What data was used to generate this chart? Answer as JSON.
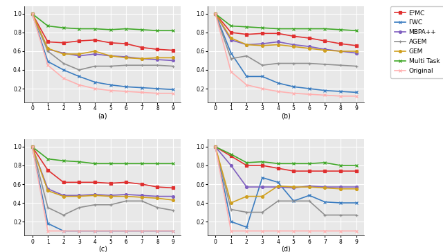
{
  "x": [
    0,
    1,
    2,
    3,
    4,
    5,
    6,
    7,
    8,
    9
  ],
  "series": {
    "E2MC": {
      "color": "#e03030",
      "marker": "s",
      "ms": 3.0,
      "lw": 1.2
    },
    "FWC": {
      "color": "#3a7cc0",
      "marker": "x",
      "ms": 3.5,
      "lw": 1.2
    },
    "MBPA++": {
      "color": "#8060c0",
      "marker": "o",
      "ms": 2.8,
      "lw": 1.2
    },
    "AGEM": {
      "color": "#909090",
      "marker": "+",
      "ms": 3.5,
      "lw": 1.2
    },
    "GEM": {
      "color": "#d0a020",
      "marker": "o",
      "ms": 2.8,
      "lw": 1.2
    },
    "Multi Task": {
      "color": "#40a828",
      "marker": "x",
      "ms": 3.5,
      "lw": 1.2
    },
    "Original": {
      "color": "#ffb0b0",
      "marker": "x",
      "ms": 3.0,
      "lw": 1.2
    }
  },
  "subplot_a": {
    "E2MC": [
      1.0,
      0.7,
      0.69,
      0.71,
      0.72,
      0.69,
      0.68,
      0.64,
      0.62,
      0.61
    ],
    "FWC": [
      1.0,
      0.49,
      0.4,
      0.33,
      0.27,
      0.24,
      0.22,
      0.21,
      0.2,
      0.19
    ],
    "MBPA++": [
      1.0,
      0.62,
      0.58,
      0.55,
      0.57,
      0.55,
      0.54,
      0.52,
      0.51,
      0.5
    ],
    "AGEM": [
      1.0,
      0.6,
      0.47,
      0.4,
      0.44,
      0.44,
      0.45,
      0.45,
      0.45,
      0.44
    ],
    "GEM": [
      1.0,
      0.63,
      0.57,
      0.57,
      0.6,
      0.55,
      0.53,
      0.52,
      0.53,
      0.53
    ],
    "Multi Task": [
      1.0,
      0.87,
      0.85,
      0.84,
      0.84,
      0.83,
      0.84,
      0.83,
      0.82,
      0.82
    ],
    "Original": [
      1.0,
      0.45,
      0.31,
      0.24,
      0.2,
      0.18,
      0.17,
      0.16,
      0.15,
      0.15
    ]
  },
  "subplot_b": {
    "E2MC": [
      1.0,
      0.8,
      0.78,
      0.79,
      0.79,
      0.76,
      0.74,
      0.71,
      0.68,
      0.66
    ],
    "FWC": [
      1.0,
      0.58,
      0.33,
      0.33,
      0.26,
      0.22,
      0.2,
      0.18,
      0.17,
      0.16
    ],
    "MBPA++": [
      1.0,
      0.72,
      0.67,
      0.68,
      0.7,
      0.67,
      0.65,
      0.62,
      0.6,
      0.58
    ],
    "AGEM": [
      1.0,
      0.52,
      0.55,
      0.45,
      0.47,
      0.47,
      0.47,
      0.46,
      0.45,
      0.44
    ],
    "GEM": [
      1.0,
      0.74,
      0.67,
      0.66,
      0.67,
      0.65,
      0.63,
      0.61,
      0.6,
      0.6
    ],
    "Multi Task": [
      1.0,
      0.87,
      0.86,
      0.85,
      0.84,
      0.84,
      0.84,
      0.84,
      0.83,
      0.82
    ],
    "Original": [
      1.0,
      0.38,
      0.24,
      0.2,
      0.17,
      0.15,
      0.14,
      0.13,
      0.12,
      0.12
    ]
  },
  "subplot_c": {
    "E2MC": [
      1.0,
      0.75,
      0.62,
      0.62,
      0.62,
      0.61,
      0.62,
      0.6,
      0.57,
      0.56
    ],
    "FWC": [
      1.0,
      0.18,
      0.1,
      0.1,
      0.1,
      0.1,
      0.1,
      0.1,
      0.1,
      0.1
    ],
    "MBPA++": [
      1.0,
      0.55,
      0.48,
      0.48,
      0.49,
      0.48,
      0.49,
      0.48,
      0.47,
      0.47
    ],
    "AGEM": [
      1.0,
      0.35,
      0.27,
      0.35,
      0.38,
      0.38,
      0.42,
      0.42,
      0.35,
      0.32
    ],
    "GEM": [
      1.0,
      0.53,
      0.47,
      0.47,
      0.48,
      0.47,
      0.47,
      0.46,
      0.45,
      0.43
    ],
    "Multi Task": [
      1.0,
      0.87,
      0.85,
      0.84,
      0.82,
      0.82,
      0.82,
      0.82,
      0.82,
      0.82
    ],
    "Original": [
      1.0,
      0.1,
      0.1,
      0.1,
      0.1,
      0.1,
      0.1,
      0.1,
      0.1,
      0.1
    ]
  },
  "subplot_d": {
    "E2MC": [
      1.0,
      0.9,
      0.8,
      0.8,
      0.77,
      0.74,
      0.74,
      0.74,
      0.74,
      0.74
    ],
    "FWC": [
      1.0,
      0.2,
      0.14,
      0.67,
      0.62,
      0.42,
      0.48,
      0.41,
      0.4,
      0.4
    ],
    "MBPA++": [
      1.0,
      0.8,
      0.57,
      0.57,
      0.57,
      0.56,
      0.58,
      0.57,
      0.57,
      0.57
    ],
    "AGEM": [
      1.0,
      0.33,
      0.3,
      0.3,
      0.42,
      0.42,
      0.42,
      0.27,
      0.27,
      0.27
    ],
    "GEM": [
      1.0,
      0.4,
      0.47,
      0.47,
      0.58,
      0.57,
      0.57,
      0.56,
      0.55,
      0.55
    ],
    "Multi Task": [
      1.0,
      0.92,
      0.83,
      0.84,
      0.82,
      0.82,
      0.82,
      0.83,
      0.8,
      0.8
    ],
    "Original": [
      1.0,
      0.1,
      0.1,
      0.1,
      0.1,
      0.1,
      0.1,
      0.1,
      0.1,
      0.1
    ]
  },
  "legend_labels": [
    "E²MC",
    "ΓWC",
    "MBPA++",
    "AGEM",
    "GEM",
    "Multi Task",
    "Original"
  ],
  "subplot_labels": [
    "(a)",
    "(b)",
    "(c)",
    "(d)"
  ],
  "yticks": [
    0.2,
    0.4,
    0.6,
    0.8,
    1.0
  ],
  "yticklabels": [
    "0.2",
    "0.4",
    "0.6",
    "0.8",
    "1.0"
  ],
  "ylim": [
    0.05,
    1.08
  ],
  "bg_color": "#e8e8e8",
  "grid_color": "white"
}
